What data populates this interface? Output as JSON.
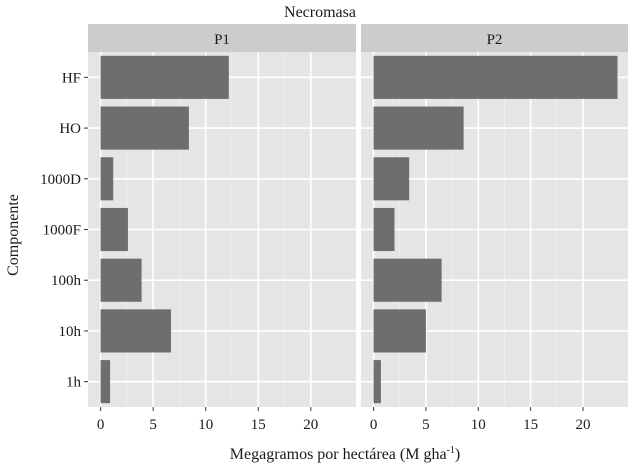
{
  "chart_data": {
    "type": "bar",
    "orientation": "horizontal",
    "title": "Necromasa",
    "xlabel": "Megagramos por hectárea (M gha",
    "xlabel_superscript": "-1",
    "xlabel_suffix": ")",
    "ylabel": "Componente",
    "categories": [
      "HF",
      "HO",
      "1000D",
      "1000F",
      "100h",
      "10h",
      "1h"
    ],
    "xlim": [
      -1.2,
      24.3
    ],
    "xticks": [
      0,
      5,
      10,
      15,
      20
    ],
    "tick_labels": [
      "0",
      "5",
      "10",
      "15",
      "20"
    ],
    "grid": true,
    "legend": "none",
    "facets": [
      {
        "name": "P1",
        "values": [
          12.2,
          8.4,
          1.2,
          2.6,
          3.9,
          6.7,
          0.9
        ]
      },
      {
        "name": "P2",
        "values": [
          23.3,
          8.6,
          3.4,
          2.0,
          6.5,
          5.0,
          0.7
        ]
      }
    ],
    "colors": {
      "bar": "#6e6e6e",
      "panel_bg": "#e5e5e5",
      "strip_bg": "#cccccc",
      "grid_major": "#ffffff",
      "grid_minor": "#f0f0f0"
    }
  }
}
